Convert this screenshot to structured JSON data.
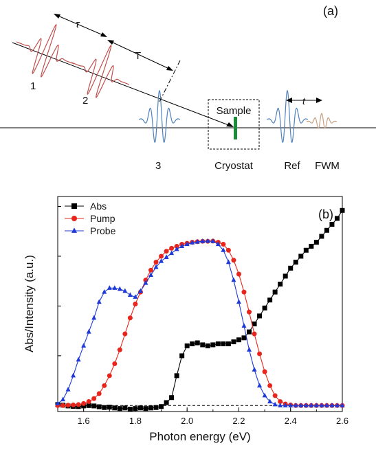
{
  "schematic": {
    "panel_label": "(a)",
    "pulse_labels": [
      "1",
      "2",
      "3"
    ],
    "tau_label": "τ",
    "T_label": "T",
    "sample_label": "Sample",
    "cryostat_label": "Cryostat",
    "ref_label": "Ref",
    "fwm_label": "FWM",
    "t_label": "t",
    "colors": {
      "pulses_12": "#c0504d",
      "pulses_3": "#4f81bd",
      "sample": "#1a8c3a",
      "fwm": "#c8a080"
    }
  },
  "chart_data": {
    "type": "line",
    "panel_label": "(b)",
    "xlabel": "Photon energy (eV)",
    "ylabel": "Abs/Intensity (a.u.)",
    "xlim": [
      1.5,
      2.6
    ],
    "ylim": [
      -0.03,
      1.05
    ],
    "xticks": [
      "1.6",
      "1.8",
      "2.0",
      "2.2",
      "2.4",
      "2.6"
    ],
    "legend_position": "top-left",
    "zero_line": {
      "y": 0,
      "style": "dashed"
    },
    "series": [
      {
        "name": "Abs",
        "color": "#000000",
        "marker": "square",
        "x": [
          1.5,
          1.52,
          1.54,
          1.56,
          1.58,
          1.6,
          1.62,
          1.64,
          1.66,
          1.68,
          1.7,
          1.72,
          1.74,
          1.76,
          1.78,
          1.8,
          1.82,
          1.84,
          1.86,
          1.88,
          1.9,
          1.92,
          1.94,
          1.96,
          1.98,
          2.0,
          2.02,
          2.04,
          2.06,
          2.08,
          2.1,
          2.12,
          2.14,
          2.16,
          2.18,
          2.2,
          2.22,
          2.24,
          2.26,
          2.28,
          2.3,
          2.32,
          2.34,
          2.36,
          2.38,
          2.4,
          2.42,
          2.44,
          2.46,
          2.48,
          2.5,
          2.52,
          2.54,
          2.56,
          2.58,
          2.6
        ],
        "y": [
          0.005,
          0.002,
          -0.002,
          -0.004,
          -0.005,
          -0.002,
          0.0,
          -0.002,
          -0.006,
          -0.01,
          -0.008,
          -0.012,
          -0.015,
          -0.012,
          -0.018,
          -0.015,
          -0.012,
          -0.015,
          -0.012,
          -0.01,
          -0.005,
          0.015,
          0.04,
          0.15,
          0.25,
          0.3,
          0.31,
          0.315,
          0.305,
          0.3,
          0.305,
          0.31,
          0.31,
          0.31,
          0.32,
          0.33,
          0.34,
          0.37,
          0.41,
          0.45,
          0.49,
          0.53,
          0.57,
          0.61,
          0.65,
          0.69,
          0.72,
          0.75,
          0.78,
          0.8,
          0.82,
          0.85,
          0.88,
          0.91,
          0.94,
          0.98
        ]
      },
      {
        "name": "Pump",
        "color": "#e8251c",
        "marker": "circle",
        "x": [
          1.5,
          1.52,
          1.54,
          1.56,
          1.58,
          1.6,
          1.62,
          1.64,
          1.66,
          1.68,
          1.7,
          1.72,
          1.74,
          1.76,
          1.78,
          1.8,
          1.82,
          1.84,
          1.86,
          1.88,
          1.9,
          1.92,
          1.94,
          1.96,
          1.98,
          2.0,
          2.02,
          2.04,
          2.06,
          2.08,
          2.1,
          2.12,
          2.14,
          2.16,
          2.18,
          2.2,
          2.22,
          2.24,
          2.26,
          2.28,
          2.3,
          2.32,
          2.34,
          2.36,
          2.38,
          2.4,
          2.42,
          2.44,
          2.46,
          2.48,
          2.5,
          2.52,
          2.54,
          2.56,
          2.58,
          2.6
        ],
        "y": [
          0.0,
          0.0,
          0.002,
          0.003,
          0.005,
          0.01,
          0.02,
          0.035,
          0.06,
          0.1,
          0.15,
          0.21,
          0.28,
          0.36,
          0.44,
          0.51,
          0.57,
          0.63,
          0.68,
          0.72,
          0.75,
          0.775,
          0.79,
          0.8,
          0.81,
          0.815,
          0.82,
          0.823,
          0.825,
          0.825,
          0.826,
          0.82,
          0.81,
          0.78,
          0.73,
          0.66,
          0.57,
          0.47,
          0.36,
          0.26,
          0.17,
          0.1,
          0.05,
          0.02,
          0.008,
          0.003,
          0.0,
          0.0,
          0.0,
          0.0,
          0.0,
          0.0,
          0.0,
          0.0,
          0.0,
          0.0
        ]
      },
      {
        "name": "Probe",
        "color": "#1f3ad6",
        "marker": "triangle",
        "x": [
          1.5,
          1.52,
          1.54,
          1.56,
          1.58,
          1.6,
          1.62,
          1.64,
          1.66,
          1.68,
          1.7,
          1.72,
          1.74,
          1.76,
          1.78,
          1.8,
          1.82,
          1.84,
          1.86,
          1.88,
          1.9,
          1.92,
          1.94,
          1.96,
          1.98,
          2.0,
          2.02,
          2.04,
          2.06,
          2.08,
          2.1,
          2.12,
          2.14,
          2.16,
          2.18,
          2.2,
          2.22,
          2.24,
          2.26,
          2.28,
          2.3,
          2.32,
          2.34,
          2.36,
          2.38,
          2.4,
          2.42,
          2.44,
          2.46,
          2.48,
          2.5,
          2.52,
          2.54,
          2.56,
          2.58,
          2.6
        ],
        "y": [
          0.01,
          0.03,
          0.08,
          0.15,
          0.23,
          0.3,
          0.37,
          0.44,
          0.52,
          0.57,
          0.59,
          0.59,
          0.585,
          0.575,
          0.555,
          0.545,
          0.575,
          0.615,
          0.655,
          0.695,
          0.725,
          0.745,
          0.765,
          0.785,
          0.8,
          0.81,
          0.818,
          0.822,
          0.825,
          0.826,
          0.825,
          0.81,
          0.78,
          0.72,
          0.63,
          0.52,
          0.4,
          0.28,
          0.18,
          0.1,
          0.05,
          0.02,
          0.005,
          0.0,
          0.0,
          0.0,
          0.0,
          0.0,
          0.0,
          0.0,
          0.0,
          0.0,
          0.0,
          0.0,
          0.0,
          0.0
        ]
      }
    ]
  }
}
